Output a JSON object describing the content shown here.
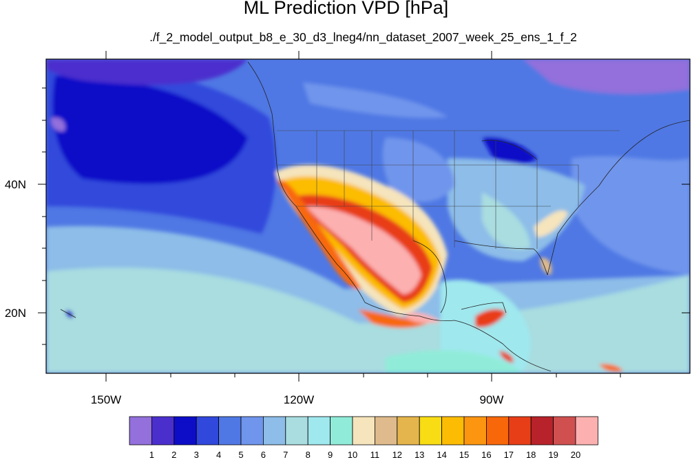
{
  "title": "ML Prediction VPD [hPa]",
  "subtitle": "./f_2_model_output_b8_e_30_d3_lneg4/nn_dataset_2007_week_25_ens_1_f_2",
  "axes": {
    "x_labels": [
      "150W",
      "120W",
      "90W"
    ],
    "y_labels": [
      "40N",
      "20N"
    ]
  },
  "colorbar": {
    "colors": [
      "#9370db",
      "#4b2fcd",
      "#0d0dc8",
      "#3148dc",
      "#4f78e4",
      "#6f95ec",
      "#8dbde8",
      "#a9dde0",
      "#9fe8ee",
      "#90ecd8",
      "#f5e4bc",
      "#deba8c",
      "#e4b54c",
      "#f8dc14",
      "#fcbc04",
      "#fc9610",
      "#f8680a",
      "#e83e18",
      "#b8222a",
      "#d05050",
      "#fcb0b0"
    ],
    "labels": [
      "1",
      "2",
      "3",
      "4",
      "5",
      "6",
      "7",
      "8",
      "9",
      "10",
      "11",
      "12",
      "13",
      "14",
      "15",
      "16",
      "17",
      "18",
      "19",
      "20"
    ]
  },
  "colors": {
    "ocean_deep": "#0d0dc8",
    "ocean_mid": "#3148dc",
    "ocean_light": "#6f95ec",
    "tropics": "#a9dde0",
    "high": "#fcb0b0",
    "peak": "#b8222a"
  }
}
